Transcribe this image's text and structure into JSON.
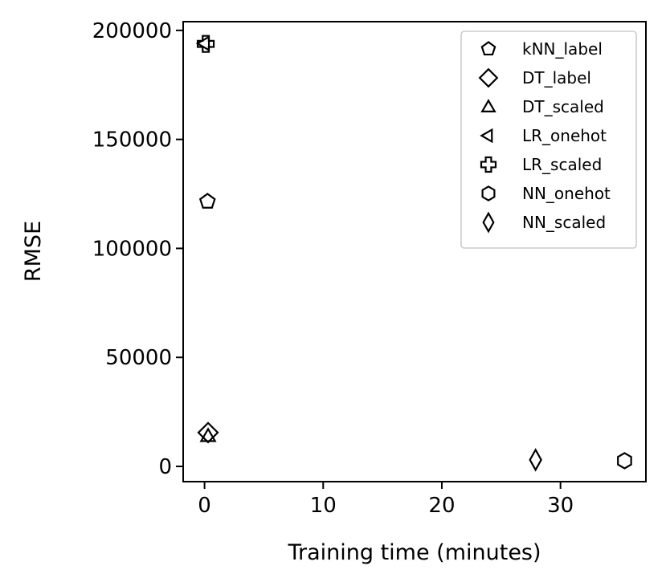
{
  "chart_data": {
    "type": "scatter",
    "title": "",
    "xlabel": "Training time (minutes)",
    "ylabel": "RMSE",
    "xlim": [
      -1.8,
      37.2
    ],
    "ylim": [
      -7000,
      204000
    ],
    "xticks": [
      0,
      10,
      20,
      30
    ],
    "yticks": [
      0,
      50000,
      100000,
      150000,
      200000
    ],
    "grid": false,
    "legend_position": "top-right",
    "colors": {
      "marker_stroke": "#000000",
      "axis": "#000000",
      "legend_frame": "#cccccc"
    },
    "series": [
      {
        "name": "kNN_label",
        "marker": "pentagon",
        "points": [
          {
            "x": 0.25,
            "y": 121500
          }
        ]
      },
      {
        "name": "DT_label",
        "marker": "diamond",
        "points": [
          {
            "x": 0.3,
            "y": 15500
          }
        ]
      },
      {
        "name": "DT_scaled",
        "marker": "triangle-up",
        "points": [
          {
            "x": 0.3,
            "y": 14000
          }
        ]
      },
      {
        "name": "LR_onehot",
        "marker": "triangle-left",
        "points": [
          {
            "x": 0.05,
            "y": 194000
          }
        ]
      },
      {
        "name": "LR_scaled",
        "marker": "plus-thick",
        "points": [
          {
            "x": 0.1,
            "y": 193800
          }
        ]
      },
      {
        "name": "NN_onehot",
        "marker": "hexagon",
        "points": [
          {
            "x": 35.4,
            "y": 2600
          }
        ]
      },
      {
        "name": "NN_scaled",
        "marker": "thin-diamond",
        "points": [
          {
            "x": 27.9,
            "y": 3000
          }
        ]
      }
    ]
  }
}
